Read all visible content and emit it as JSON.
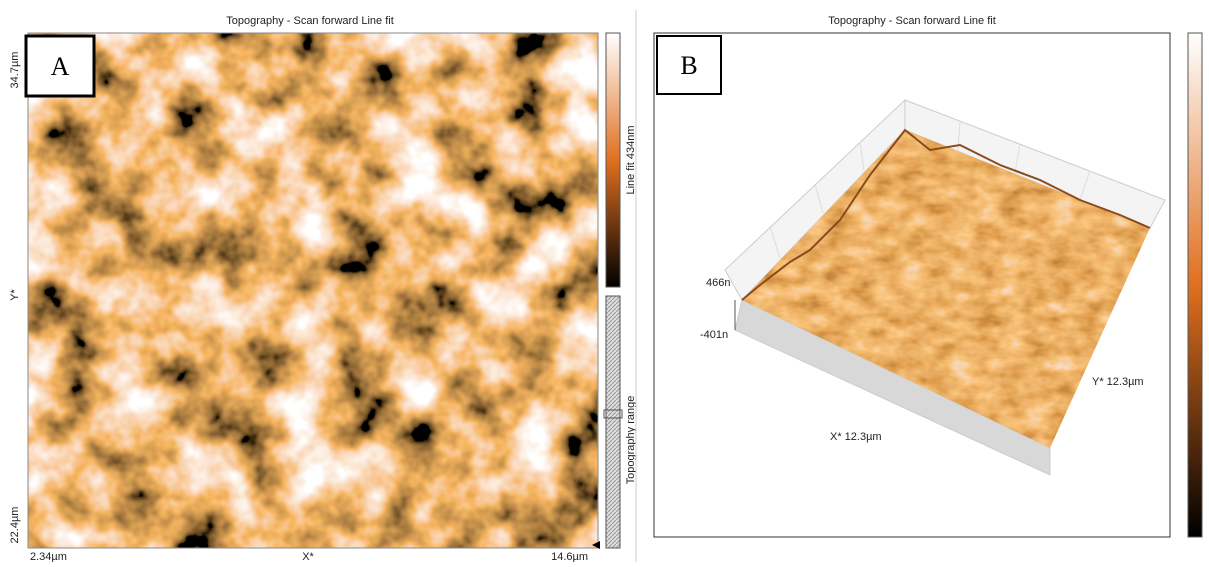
{
  "panel_a": {
    "label": "A",
    "title": "Topography - Scan forward   Line fit",
    "y_top": "34.7µm",
    "y_bottom": "22.4µm",
    "y_axis": "Y*",
    "x_left": "2.34µm",
    "x_axis": "X*",
    "x_right": "14.6µm",
    "colorbar_label": "Line fit 434nm",
    "range_label": "Topography range"
  },
  "panel_b": {
    "label": "B",
    "title": "Topography - Scan forward   Line fit",
    "z_top": "466n",
    "z_bottom": "-401n",
    "x_axis": "X* 12.3µm",
    "y_axis": "Y* 12.3µm"
  }
}
